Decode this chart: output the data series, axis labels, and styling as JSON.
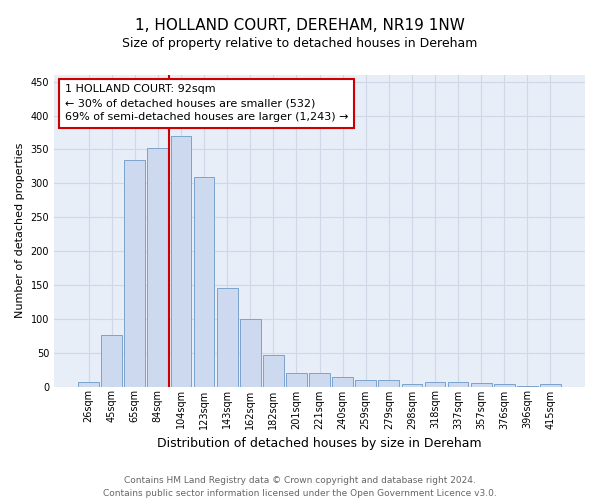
{
  "title": "1, HOLLAND COURT, DEREHAM, NR19 1NW",
  "subtitle": "Size of property relative to detached houses in Dereham",
  "xlabel": "Distribution of detached houses by size in Dereham",
  "ylabel": "Number of detached properties",
  "bar_color": "#ccd9ee",
  "bar_edge_color": "#7aa3cc",
  "categories": [
    "26sqm",
    "45sqm",
    "65sqm",
    "84sqm",
    "104sqm",
    "123sqm",
    "143sqm",
    "162sqm",
    "182sqm",
    "201sqm",
    "221sqm",
    "240sqm",
    "259sqm",
    "279sqm",
    "298sqm",
    "318sqm",
    "337sqm",
    "357sqm",
    "376sqm",
    "396sqm",
    "415sqm"
  ],
  "values": [
    7,
    76,
    335,
    352,
    370,
    310,
    145,
    100,
    47,
    20,
    20,
    14,
    10,
    10,
    4,
    7,
    7,
    5,
    4,
    1,
    4
  ],
  "vline_color": "#cc0000",
  "vline_x_index": 3.5,
  "annotation_line1": "1 HOLLAND COURT: 92sqm",
  "annotation_line2": "← 30% of detached houses are smaller (532)",
  "annotation_line3": "69% of semi-detached houses are larger (1,243) →",
  "annotation_box_color": "#ffffff",
  "annotation_box_edge": "#cc0000",
  "ylim": [
    0,
    460
  ],
  "yticks": [
    0,
    50,
    100,
    150,
    200,
    250,
    300,
    350,
    400,
    450
  ],
  "grid_color": "#d0d8e8",
  "background_color": "#e8eef8",
  "footer_text": "Contains HM Land Registry data © Crown copyright and database right 2024.\nContains public sector information licensed under the Open Government Licence v3.0.",
  "title_fontsize": 11,
  "subtitle_fontsize": 9,
  "ylabel_fontsize": 8,
  "xlabel_fontsize": 9,
  "annotation_fontsize": 8,
  "footer_fontsize": 6.5,
  "tick_fontsize": 7
}
